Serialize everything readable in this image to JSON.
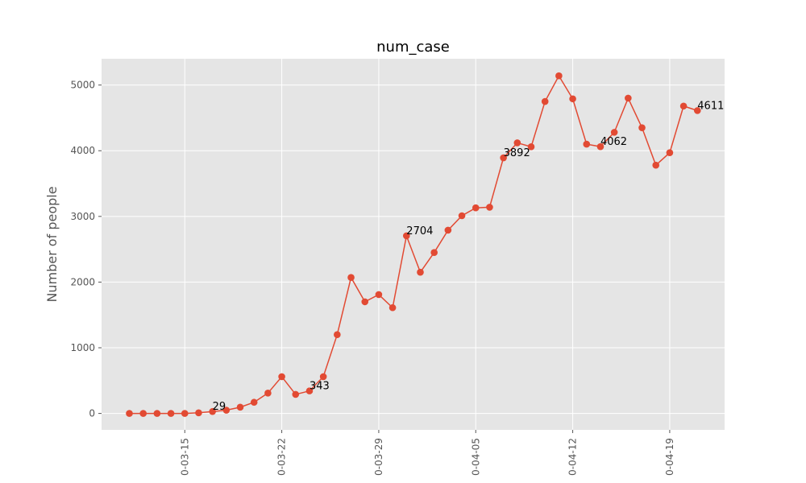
{
  "chart_data": {
    "type": "line",
    "title": "num_case",
    "xlabel": "",
    "ylabel": "Number of people",
    "ylim": [
      -250,
      5400
    ],
    "grid": true,
    "x_tick_labels": [
      "0-03-15",
      "0-03-22",
      "0-03-29",
      "0-04-05",
      "0-04-12",
      "0-04-19"
    ],
    "y_ticks": [
      0,
      1000,
      2000,
      3000,
      4000,
      5000
    ],
    "series": [
      {
        "color": "#e24a33",
        "values": [
          0,
          0,
          0,
          0,
          0,
          10,
          29,
          50,
          95,
          170,
          310,
          560,
          290,
          343,
          560,
          1200,
          2070,
          1700,
          1810,
          1610,
          2704,
          2150,
          2450,
          2790,
          3010,
          3130,
          3140,
          3892,
          4120,
          4060,
          4750,
          5140,
          4790,
          4100,
          4062,
          4280,
          4800,
          4350,
          3780,
          3970,
          4680,
          4611
        ]
      }
    ],
    "annotations": [
      {
        "index": 6,
        "text": "29"
      },
      {
        "index": 13,
        "text": "343"
      },
      {
        "index": 20,
        "text": "2704"
      },
      {
        "index": 27,
        "text": "3892"
      },
      {
        "index": 34,
        "text": "4062"
      },
      {
        "index": 41,
        "text": "4611"
      }
    ]
  }
}
